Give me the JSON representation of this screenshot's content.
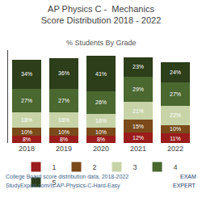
{
  "chart_data": {
    "type": "bar",
    "stacked": true,
    "title": "AP Physics C -  Mechanics\nScore Distribution 2018 - 2022",
    "subtitle": "% Students By Grade",
    "categories": [
      "2018",
      "2019",
      "2020",
      "2021",
      "2022"
    ],
    "series": [
      {
        "name": "1",
        "color": "#9b1c1c",
        "values": [
          8,
          8,
          8,
          12,
          11
        ],
        "value_labels": [
          "8%",
          "8%",
          "8%",
          "12%",
          "11%"
        ]
      },
      {
        "name": "2",
        "color": "#7a4a1a",
        "values": [
          10,
          10,
          10,
          15,
          10
        ],
        "value_labels": [
          "10%",
          "10%",
          "10%",
          "15%",
          "10%"
        ]
      },
      {
        "name": "3",
        "color": "#c8d4a8",
        "values": [
          18,
          18,
          16,
          21,
          22
        ],
        "value_labels": [
          "18%",
          "18%",
          "16%",
          "21%",
          "22%"
        ]
      },
      {
        "name": "4",
        "color": "#4a6830",
        "values": [
          27,
          27,
          26,
          29,
          27
        ],
        "value_labels": [
          "27%",
          "27%",
          "26%",
          "29%",
          "27%"
        ]
      },
      {
        "name": "5",
        "color": "#2c3e1a",
        "values": [
          34,
          36,
          41,
          23,
          24
        ],
        "value_labels": [
          "34%",
          "36%",
          "41%",
          "23%",
          "24%"
        ]
      }
    ],
    "ylim": [
      0,
      108
    ],
    "yticks": [],
    "grid": false,
    "tick_labels": "x",
    "data_labels": true,
    "legend": "bottom",
    "annotations": [
      "College Board score distribution data, 2018-2022",
      "StudyExpert.com/Is-AP-Physics-C-Hard-Easy",
      "EXAM",
      "EXPERT"
    ]
  }
}
